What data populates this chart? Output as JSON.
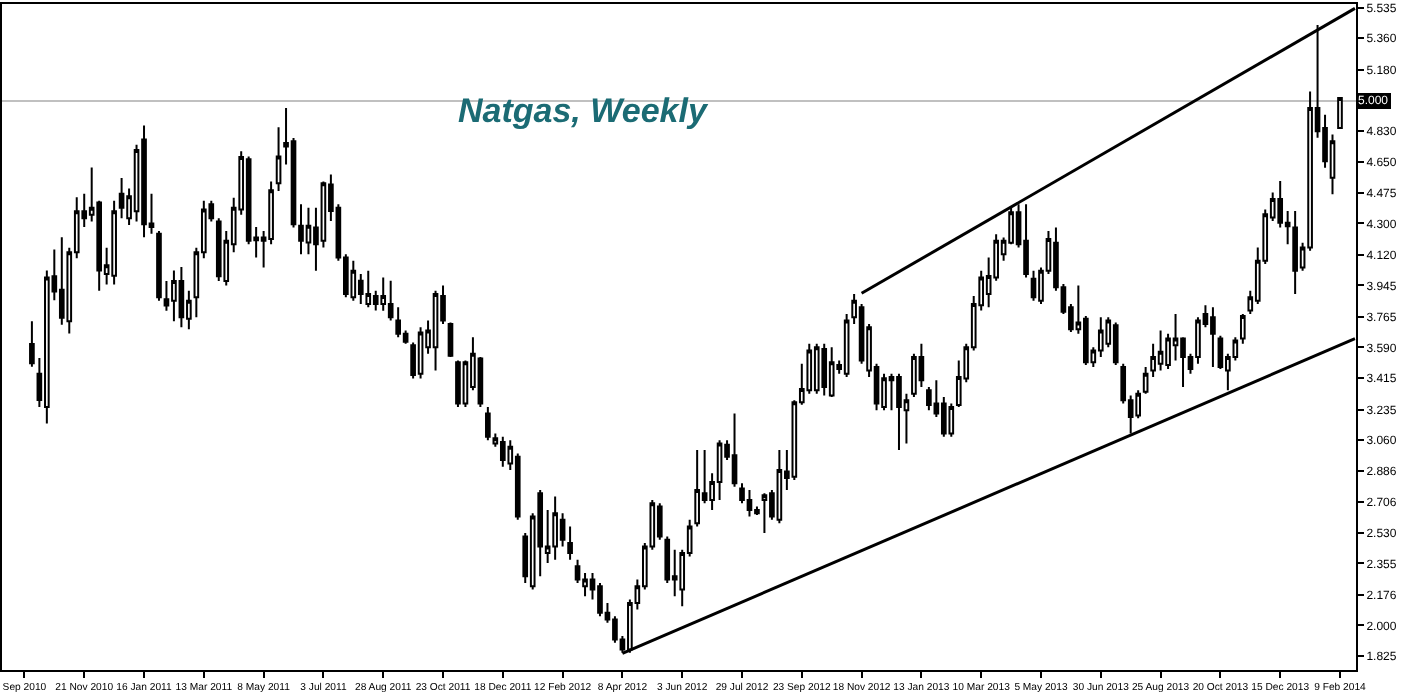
{
  "chart_data": {
    "type": "candlestick",
    "title": "Natgas, Weekly",
    "color": "#000000",
    "x": [
      "2010-10-03",
      "2010-10-10",
      "2010-10-17",
      "2010-10-24",
      "2010-10-31",
      "2010-11-07",
      "2010-11-14",
      "2010-11-21",
      "2010-11-28",
      "2010-12-05",
      "2010-12-12",
      "2010-12-19",
      "2010-12-26",
      "2011-01-02",
      "2011-01-09",
      "2011-01-16",
      "2011-01-23",
      "2011-01-30",
      "2011-02-06",
      "2011-02-13",
      "2011-02-20",
      "2011-02-27",
      "2011-03-06",
      "2011-03-13",
      "2011-03-20",
      "2011-03-27",
      "2011-04-03",
      "2011-04-10",
      "2011-04-17",
      "2011-04-24",
      "2011-05-01",
      "2011-05-08",
      "2011-05-15",
      "2011-05-22",
      "2011-05-29",
      "2011-06-05",
      "2011-06-12",
      "2011-06-19",
      "2011-06-26",
      "2011-07-03",
      "2011-07-10",
      "2011-07-17",
      "2011-07-24",
      "2011-07-31",
      "2011-08-07",
      "2011-08-14",
      "2011-08-21",
      "2011-08-28",
      "2011-09-04",
      "2011-09-11",
      "2011-09-18",
      "2011-09-25",
      "2011-10-02",
      "2011-10-09",
      "2011-10-16",
      "2011-10-23",
      "2011-10-30",
      "2011-11-06",
      "2011-11-13",
      "2011-11-20",
      "2011-11-27",
      "2011-12-04",
      "2011-12-11",
      "2011-12-18",
      "2011-12-25",
      "2012-01-01",
      "2012-01-08",
      "2012-01-15",
      "2012-01-22",
      "2012-01-29",
      "2012-02-05",
      "2012-02-12",
      "2012-02-19",
      "2012-02-26",
      "2012-03-04",
      "2012-03-11",
      "2012-03-18",
      "2012-03-25",
      "2012-04-01",
      "2012-04-08",
      "2012-04-15",
      "2012-04-22",
      "2012-04-29",
      "2012-05-06",
      "2012-05-13",
      "2012-05-20",
      "2012-05-27",
      "2012-06-03",
      "2012-06-10",
      "2012-06-17",
      "2012-06-24",
      "2012-07-01",
      "2012-07-08",
      "2012-07-15",
      "2012-07-22",
      "2012-07-29",
      "2012-08-05",
      "2012-08-12",
      "2012-08-19",
      "2012-08-26",
      "2012-09-02",
      "2012-09-09",
      "2012-09-16",
      "2012-09-23",
      "2012-09-30",
      "2012-10-07",
      "2012-10-14",
      "2012-10-21",
      "2012-10-28",
      "2012-11-04",
      "2012-11-11",
      "2012-11-18",
      "2012-11-25",
      "2012-12-02",
      "2012-12-09",
      "2012-12-16",
      "2012-12-23",
      "2012-12-30",
      "2013-01-06",
      "2013-01-13",
      "2013-01-20",
      "2013-01-27",
      "2013-02-03",
      "2013-02-10",
      "2013-02-17",
      "2013-02-24",
      "2013-03-03",
      "2013-03-10",
      "2013-03-17",
      "2013-03-24",
      "2013-03-31",
      "2013-04-07",
      "2013-04-14",
      "2013-04-21",
      "2013-04-28",
      "2013-05-05",
      "2013-05-12",
      "2013-05-19",
      "2013-05-26",
      "2013-06-02",
      "2013-06-09",
      "2013-06-16",
      "2013-06-23",
      "2013-06-30",
      "2013-07-07",
      "2013-07-14",
      "2013-07-21",
      "2013-07-28",
      "2013-08-04",
      "2013-08-11",
      "2013-08-18",
      "2013-08-25",
      "2013-09-01",
      "2013-09-08",
      "2013-09-15",
      "2013-09-22",
      "2013-09-29",
      "2013-10-06",
      "2013-10-13",
      "2013-10-20",
      "2013-10-27",
      "2013-11-03",
      "2013-11-10",
      "2013-11-17",
      "2013-11-24",
      "2013-12-01",
      "2013-12-08",
      "2013-12-15",
      "2013-12-22",
      "2013-12-29",
      "2014-01-05",
      "2014-01-12",
      "2014-01-19",
      "2014-01-26",
      "2014-02-02",
      "2014-02-09"
    ],
    "ohlc": [
      [
        3.61,
        3.74,
        3.48,
        3.5
      ],
      [
        3.44,
        3.53,
        3.25,
        3.29
      ],
      [
        3.25,
        4.03,
        3.155,
        3.99
      ],
      [
        3.998,
        4.15,
        3.86,
        3.91
      ],
      [
        3.92,
        4.22,
        3.72,
        3.76
      ],
      [
        3.74,
        4.16,
        3.67,
        4.135
      ],
      [
        4.135,
        4.45,
        4.1,
        4.37
      ],
      [
        4.37,
        4.47,
        4.28,
        4.33
      ],
      [
        4.35,
        4.62,
        4.31,
        4.39
      ],
      [
        4.42,
        4.43,
        3.915,
        4.03
      ],
      [
        4.01,
        4.16,
        3.95,
        4.06
      ],
      [
        4.0,
        4.43,
        3.95,
        4.37
      ],
      [
        4.47,
        4.56,
        4.33,
        4.39
      ],
      [
        4.33,
        4.5,
        4.29,
        4.455
      ],
      [
        4.37,
        4.75,
        4.31,
        4.72
      ],
      [
        4.78,
        4.86,
        4.22,
        4.295
      ],
      [
        4.3,
        4.47,
        4.24,
        4.28
      ],
      [
        4.24,
        4.257,
        3.858,
        3.877
      ],
      [
        3.866,
        3.97,
        3.8,
        3.83
      ],
      [
        3.858,
        4.03,
        3.74,
        3.97
      ],
      [
        3.97,
        4.05,
        3.706,
        3.763
      ],
      [
        3.755,
        3.915,
        3.695,
        3.858
      ],
      [
        3.877,
        4.16,
        3.763,
        4.135
      ],
      [
        4.135,
        4.43,
        4.1,
        4.38
      ],
      [
        4.41,
        4.43,
        4.31,
        4.33
      ],
      [
        4.31,
        4.33,
        3.97,
        3.998
      ],
      [
        3.97,
        4.257,
        3.945,
        4.2
      ],
      [
        4.18,
        4.447,
        4.135,
        4.39
      ],
      [
        4.38,
        4.713,
        4.35,
        4.68
      ],
      [
        4.667,
        4.683,
        4.18,
        4.2
      ],
      [
        4.219,
        4.28,
        4.105,
        4.204
      ],
      [
        4.219,
        4.257,
        4.048,
        4.2
      ],
      [
        4.21,
        4.54,
        4.18,
        4.49
      ],
      [
        4.53,
        4.85,
        4.485,
        4.683
      ],
      [
        4.76,
        4.96,
        4.637,
        4.74
      ],
      [
        4.77,
        4.789,
        4.276,
        4.295
      ],
      [
        4.287,
        4.409,
        4.124,
        4.2
      ],
      [
        4.19,
        4.39,
        4.124,
        4.287
      ],
      [
        4.276,
        4.39,
        4.029,
        4.181
      ],
      [
        4.2,
        4.54,
        4.162,
        4.53
      ],
      [
        4.523,
        4.58,
        4.314,
        4.371
      ],
      [
        4.39,
        4.409,
        4.086,
        4.105
      ],
      [
        4.105,
        4.124,
        3.877,
        3.896
      ],
      [
        3.877,
        4.086,
        3.858,
        4.029
      ],
      [
        3.972,
        4.01,
        3.839,
        3.896
      ],
      [
        3.839,
        4.029,
        3.82,
        3.896
      ],
      [
        3.885,
        3.915,
        3.801,
        3.839
      ],
      [
        3.839,
        3.99,
        3.8,
        3.885
      ],
      [
        3.839,
        3.972,
        3.744,
        3.763
      ],
      [
        3.744,
        3.82,
        3.649,
        3.668
      ],
      [
        3.668,
        3.687,
        3.611,
        3.623
      ],
      [
        3.603,
        3.619,
        3.413,
        3.432
      ],
      [
        3.44,
        3.706,
        3.413,
        3.676
      ],
      [
        3.592,
        3.744,
        3.554,
        3.687
      ],
      [
        3.592,
        3.915,
        3.459,
        3.896
      ],
      [
        3.885,
        3.945,
        3.725,
        3.744
      ],
      [
        3.725,
        3.733,
        3.535,
        3.543
      ],
      [
        3.505,
        3.516,
        3.25,
        3.269
      ],
      [
        3.269,
        3.516,
        3.25,
        3.505
      ],
      [
        3.364,
        3.649,
        3.345,
        3.554
      ],
      [
        3.527,
        3.535,
        3.25,
        3.269
      ],
      [
        3.212,
        3.25,
        3.06,
        3.079
      ],
      [
        3.041,
        3.098,
        3.022,
        3.071
      ],
      [
        3.049,
        3.079,
        2.908,
        2.946
      ],
      [
        2.927,
        3.06,
        2.889,
        3.022
      ],
      [
        2.965,
        2.984,
        2.604,
        2.623
      ],
      [
        2.509,
        2.528,
        2.243,
        2.281
      ],
      [
        2.224,
        2.642,
        2.205,
        2.623
      ],
      [
        2.756,
        2.775,
        2.281,
        2.452
      ],
      [
        2.414,
        2.661,
        2.357,
        2.452
      ],
      [
        2.452,
        2.737,
        2.376,
        2.642
      ],
      [
        2.604,
        2.642,
        2.452,
        2.49
      ],
      [
        2.471,
        2.566,
        2.376,
        2.414
      ],
      [
        2.338,
        2.376,
        2.243,
        2.262
      ],
      [
        2.224,
        2.3,
        2.167,
        2.262
      ],
      [
        2.262,
        2.3,
        2.148,
        2.205
      ],
      [
        2.224,
        2.243,
        2.053,
        2.072
      ],
      [
        2.072,
        2.129,
        2.015,
        2.034
      ],
      [
        2.034,
        2.053,
        1.901,
        1.92
      ],
      [
        1.92,
        1.939,
        1.844,
        1.863
      ],
      [
        1.863,
        2.148,
        1.844,
        2.129
      ],
      [
        2.129,
        2.262,
        2.091,
        2.224
      ],
      [
        2.224,
        2.471,
        2.205,
        2.452
      ],
      [
        2.452,
        2.718,
        2.433,
        2.699
      ],
      [
        2.68,
        2.699,
        2.49,
        2.509
      ],
      [
        2.49,
        2.509,
        2.243,
        2.262
      ],
      [
        2.281,
        2.433,
        2.167,
        2.262
      ],
      [
        2.205,
        2.433,
        2.11,
        2.414
      ],
      [
        2.414,
        2.604,
        2.395,
        2.566
      ],
      [
        2.585,
        3.003,
        2.566,
        2.775
      ],
      [
        2.756,
        3.003,
        2.699,
        2.718
      ],
      [
        2.718,
        2.87,
        2.661,
        2.82
      ],
      [
        2.82,
        3.06,
        2.718,
        3.041
      ],
      [
        3.034,
        3.06,
        2.946,
        2.965
      ],
      [
        2.973,
        3.212,
        2.794,
        2.813
      ],
      [
        2.783,
        2.813,
        2.699,
        2.718
      ],
      [
        2.718,
        2.775,
        2.623,
        2.661
      ],
      [
        2.661,
        2.68,
        2.631,
        2.642
      ],
      [
        2.718,
        2.756,
        2.528,
        2.745
      ],
      [
        2.756,
        2.775,
        2.604,
        2.623
      ],
      [
        2.604,
        3.003,
        2.585,
        2.889
      ],
      [
        2.881,
        3.003,
        2.775,
        2.843
      ],
      [
        2.851,
        3.288,
        2.832,
        3.277
      ],
      [
        3.277,
        3.497,
        3.262,
        3.353
      ],
      [
        3.345,
        3.611,
        3.326,
        3.573
      ],
      [
        3.345,
        3.611,
        3.326,
        3.592
      ],
      [
        3.581,
        3.611,
        3.315,
        3.364
      ],
      [
        3.315,
        3.592,
        3.307,
        3.505
      ],
      [
        3.49,
        3.516,
        3.44,
        3.467
      ],
      [
        3.44,
        3.782,
        3.421,
        3.744
      ],
      [
        3.763,
        3.896,
        3.725,
        3.858
      ],
      [
        3.82,
        3.839,
        3.497,
        3.516
      ],
      [
        3.459,
        3.725,
        3.421,
        3.706
      ],
      [
        3.478,
        3.497,
        3.231,
        3.269
      ],
      [
        3.25,
        3.44,
        3.231,
        3.414
      ],
      [
        3.421,
        3.44,
        3.231,
        3.402
      ],
      [
        3.421,
        3.44,
        3.003,
        3.25
      ],
      [
        3.231,
        3.326,
        3.041,
        3.288
      ],
      [
        3.326,
        3.554,
        3.307,
        3.535
      ],
      [
        3.535,
        3.611,
        3.364,
        3.402
      ],
      [
        3.345,
        3.364,
        3.231,
        3.261
      ],
      [
        3.269,
        3.402,
        3.193,
        3.212
      ],
      [
        3.269,
        3.307,
        3.079,
        3.098
      ],
      [
        3.098,
        3.269,
        3.079,
        3.25
      ],
      [
        3.261,
        3.516,
        3.25,
        3.421
      ],
      [
        3.413,
        3.611,
        3.391,
        3.592
      ],
      [
        3.592,
        3.885,
        3.573,
        3.839
      ],
      [
        3.832,
        4.029,
        3.801,
        3.991
      ],
      [
        3.896,
        4.105,
        3.82,
        3.999
      ],
      [
        3.991,
        4.238,
        3.972,
        4.2
      ],
      [
        4.124,
        4.219,
        4.086,
        4.2
      ],
      [
        4.189,
        4.39,
        4.181,
        4.363
      ],
      [
        4.363,
        4.409,
        4.162,
        4.181
      ],
      [
        4.2,
        4.409,
        3.991,
        4.01
      ],
      [
        3.983,
        4.029,
        3.858,
        3.877
      ],
      [
        3.858,
        4.048,
        3.839,
        4.029
      ],
      [
        4.029,
        4.257,
        4.01,
        4.211
      ],
      [
        4.189,
        4.276,
        3.915,
        3.934
      ],
      [
        3.934,
        3.953,
        3.782,
        3.794
      ],
      [
        3.82,
        3.839,
        3.679,
        3.695
      ],
      [
        3.695,
        3.945,
        3.668,
        3.733
      ],
      [
        3.755,
        3.77,
        3.49,
        3.505
      ],
      [
        3.505,
        3.592,
        3.478,
        3.573
      ],
      [
        3.573,
        3.763,
        3.535,
        3.687
      ],
      [
        3.611,
        3.763,
        3.592,
        3.744
      ],
      [
        3.717,
        3.733,
        3.49,
        3.505
      ],
      [
        3.478,
        3.497,
        3.269,
        3.288
      ],
      [
        3.288,
        3.315,
        3.098,
        3.193
      ],
      [
        3.201,
        3.345,
        3.185,
        3.326
      ],
      [
        3.337,
        3.478,
        3.326,
        3.44
      ],
      [
        3.459,
        3.611,
        3.421,
        3.535
      ],
      [
        3.497,
        3.687,
        3.459,
        3.565
      ],
      [
        3.49,
        3.668,
        3.467,
        3.641
      ],
      [
        3.603,
        3.782,
        3.516,
        3.641
      ],
      [
        3.641,
        3.649,
        3.364,
        3.535
      ],
      [
        3.535,
        3.554,
        3.44,
        3.467
      ],
      [
        3.535,
        3.763,
        3.497,
        3.744
      ],
      [
        3.782,
        3.831,
        3.706,
        3.725
      ],
      [
        3.763,
        3.82,
        3.478,
        3.668
      ],
      [
        3.641,
        3.657,
        3.467,
        3.478
      ],
      [
        3.459,
        3.554,
        3.345,
        3.535
      ],
      [
        3.535,
        3.649,
        3.516,
        3.63
      ],
      [
        3.641,
        3.782,
        3.611,
        3.77
      ],
      [
        3.801,
        3.915,
        3.782,
        3.877
      ],
      [
        3.858,
        4.162,
        3.839,
        4.086
      ],
      [
        4.086,
        4.379,
        4.067,
        4.352
      ],
      [
        4.333,
        4.477,
        4.314,
        4.439
      ],
      [
        4.439,
        4.542,
        4.276,
        4.303
      ],
      [
        4.303,
        4.371,
        4.181,
        4.284
      ],
      [
        4.276,
        4.371,
        3.896,
        4.029
      ],
      [
        4.048,
        4.189,
        4.029,
        4.162
      ],
      [
        4.162,
        5.055,
        4.143,
        4.96
      ],
      [
        4.96,
        5.435,
        4.79,
        4.827
      ],
      [
        4.846,
        4.922,
        4.618,
        4.656
      ],
      [
        4.561,
        4.808,
        4.466,
        4.77
      ],
      [
        4.846,
        5.017,
        4.846,
        5.017
      ]
    ],
    "series": [
      {
        "type": "line",
        "color": "#000000",
        "x": [
          "2012-04-08",
          "2014-02-23"
        ],
        "values": [
          1.84,
          3.64
        ]
      },
      {
        "type": "line",
        "color": "#000000",
        "x": [
          "2012-11-18",
          "2014-02-23"
        ],
        "values": [
          3.9,
          5.53
        ]
      }
    ],
    "ref_lines": [
      {
        "axis": "y",
        "value": 5.0,
        "label": "5.000",
        "color": "#c0c0c0"
      }
    ],
    "xlim": [
      "2010-09-05",
      "2014-02-24"
    ],
    "xticks": [
      {
        "value": "2010-09-26",
        "label": "Sep 2010"
      },
      {
        "value": "2010-11-21",
        "label": "21 Nov 2010"
      },
      {
        "value": "2011-01-16",
        "label": "16 Jan 2011"
      },
      {
        "value": "2011-03-13",
        "label": "13 Mar 2011"
      },
      {
        "value": "2011-05-08",
        "label": "8 May 2011"
      },
      {
        "value": "2011-07-03",
        "label": "3 Jul 2011"
      },
      {
        "value": "2011-08-28",
        "label": "28 Aug 2011"
      },
      {
        "value": "2011-10-23",
        "label": "23 Oct 2011"
      },
      {
        "value": "2011-12-18",
        "label": "18 Dec 2011"
      },
      {
        "value": "2012-02-12",
        "label": "12 Feb 2012"
      },
      {
        "value": "2012-04-08",
        "label": "8 Apr 2012"
      },
      {
        "value": "2012-06-03",
        "label": "3 Jun 2012"
      },
      {
        "value": "2012-07-29",
        "label": "29 Jul 2012"
      },
      {
        "value": "2012-09-23",
        "label": "23 Sep 2012"
      },
      {
        "value": "2012-11-18",
        "label": "18 Nov 2012"
      },
      {
        "value": "2013-01-13",
        "label": "13 Jan 2013"
      },
      {
        "value": "2013-03-10",
        "label": "10 Mar 2013"
      },
      {
        "value": "2013-05-05",
        "label": "5 May 2013"
      },
      {
        "value": "2013-06-30",
        "label": "30 Jun 2013"
      },
      {
        "value": "2013-08-25",
        "label": "25 Aug 2013"
      },
      {
        "value": "2013-10-20",
        "label": "20 Oct 2013"
      },
      {
        "value": "2013-12-15",
        "label": "15 Dec 2013"
      },
      {
        "value": "2014-02-09",
        "label": "9 Feb 2014"
      }
    ],
    "ylim": [
      1.745,
      5.555
    ],
    "yticks": [
      {
        "value": 1.825,
        "label": "1.825"
      },
      {
        "value": 2.0,
        "label": "2.000"
      },
      {
        "value": 2.176,
        "label": "2.176"
      },
      {
        "value": 2.355,
        "label": "2.355"
      },
      {
        "value": 2.53,
        "label": "2.530"
      },
      {
        "value": 2.706,
        "label": "2.706"
      },
      {
        "value": 2.886,
        "label": "2.886"
      },
      {
        "value": 3.06,
        "label": "3.060"
      },
      {
        "value": 3.235,
        "label": "3.235"
      },
      {
        "value": 3.415,
        "label": "3.415"
      },
      {
        "value": 3.59,
        "label": "3.590"
      },
      {
        "value": 3.765,
        "label": "3.765"
      },
      {
        "value": 3.945,
        "label": "3.945"
      },
      {
        "value": 4.12,
        "label": "4.120"
      },
      {
        "value": 4.3,
        "label": "4.300"
      },
      {
        "value": 4.475,
        "label": "4.475"
      },
      {
        "value": 4.65,
        "label": "4.650"
      },
      {
        "value": 4.83,
        "label": "4.830"
      },
      {
        "value": 5.18,
        "label": "5.180"
      },
      {
        "value": 5.36,
        "label": "5.360"
      },
      {
        "value": 5.535,
        "label": "5.535"
      }
    ]
  }
}
